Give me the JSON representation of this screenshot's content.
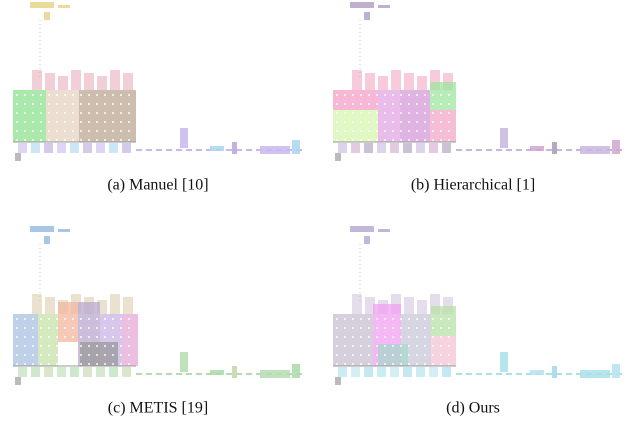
{
  "figure": {
    "captions": [
      "(a) Manuel [10]",
      "(b) Hierarchical [1]",
      "(c) METIS [19]",
      "(d) Ours"
    ]
  }
}
